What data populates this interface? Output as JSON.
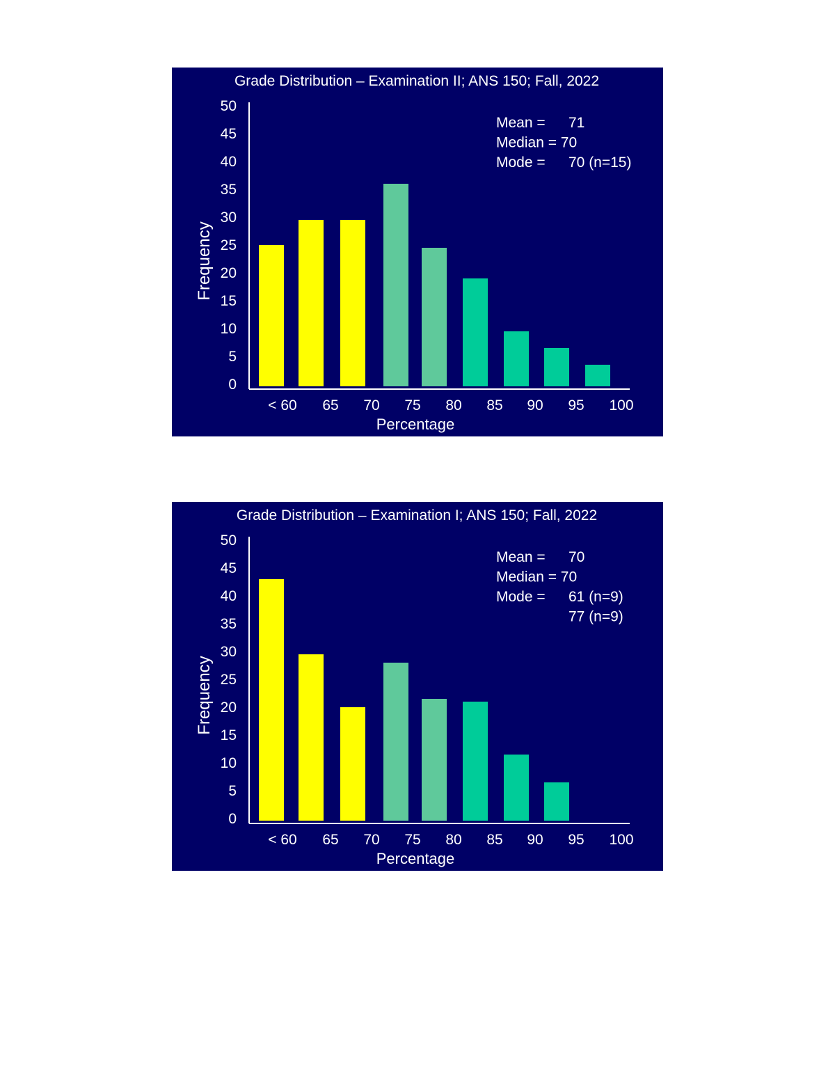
{
  "colors": {
    "panel_background": "#000066",
    "axis": "#ffffff",
    "text": "#ffffff",
    "bar_yellow": "#ffff00",
    "bar_sea_green": "#5fc99b",
    "bar_teal": "#00cc99"
  },
  "chart_data": [
    {
      "type": "bar",
      "title": "Grade Distribution – Examination  II; ANS 150; Fall, 2022",
      "xlabel": "Percentage",
      "ylabel": "Frequency",
      "ylim": [
        0,
        50
      ],
      "yticks": [
        "0",
        "5",
        "10",
        "15",
        "20",
        "25",
        "30",
        "35",
        "40",
        "45",
        "50"
      ],
      "xticks": [
        "< 60",
        "65",
        "70",
        "75",
        "80",
        "85",
        "90",
        "95",
        "100"
      ],
      "categories": [
        "< 60",
        "60–65",
        "65–70",
        "70–75",
        "75–80",
        "80–85",
        "85–90",
        "90–95",
        "95–100"
      ],
      "values": [
        25,
        29.5,
        29.5,
        36,
        24.5,
        19,
        9.5,
        6.5,
        3.5
      ],
      "bar_colors": [
        "#ffff00",
        "#ffff00",
        "#ffff00",
        "#5fc99b",
        "#5fc99b",
        "#00cc99",
        "#00cc99",
        "#00cc99",
        "#00cc99"
      ],
      "stats": [
        {
          "label": "Mean  =",
          "value": "71"
        },
        {
          "label": "Median = 70",
          "value": ""
        },
        {
          "label": "Mode =",
          "value": "70 (n=15)"
        }
      ],
      "grid": false
    },
    {
      "type": "bar",
      "title": "Grade Distribution – Examination  I; ANS 150; Fall, 2022",
      "xlabel": "Percentage",
      "ylabel": "Frequency",
      "ylim": [
        0,
        50
      ],
      "yticks": [
        "0",
        "5",
        "10",
        "15",
        "20",
        "25",
        "30",
        "35",
        "40",
        "45",
        "50"
      ],
      "xticks": [
        "< 60",
        "65",
        "70",
        "75",
        "80",
        "85",
        "90",
        "95",
        "100"
      ],
      "categories": [
        "< 60",
        "60–65",
        "65–70",
        "70–75",
        "75–80",
        "80–85",
        "85–90",
        "90–95",
        "95–100"
      ],
      "values": [
        43,
        29.5,
        20,
        28,
        21.5,
        21,
        11.5,
        6.5,
        0
      ],
      "bar_colors": [
        "#ffff00",
        "#ffff00",
        "#ffff00",
        "#5fc99b",
        "#5fc99b",
        "#00cc99",
        "#00cc99",
        "#00cc99",
        "#00cc99"
      ],
      "stats": [
        {
          "label": "Mean  =",
          "value": "70"
        },
        {
          "label": "Median = 70",
          "value": ""
        },
        {
          "label": "Mode =",
          "value": "61 (n=9)"
        },
        {
          "label": "",
          "value": "77 (n=9)"
        }
      ],
      "grid": false
    }
  ]
}
